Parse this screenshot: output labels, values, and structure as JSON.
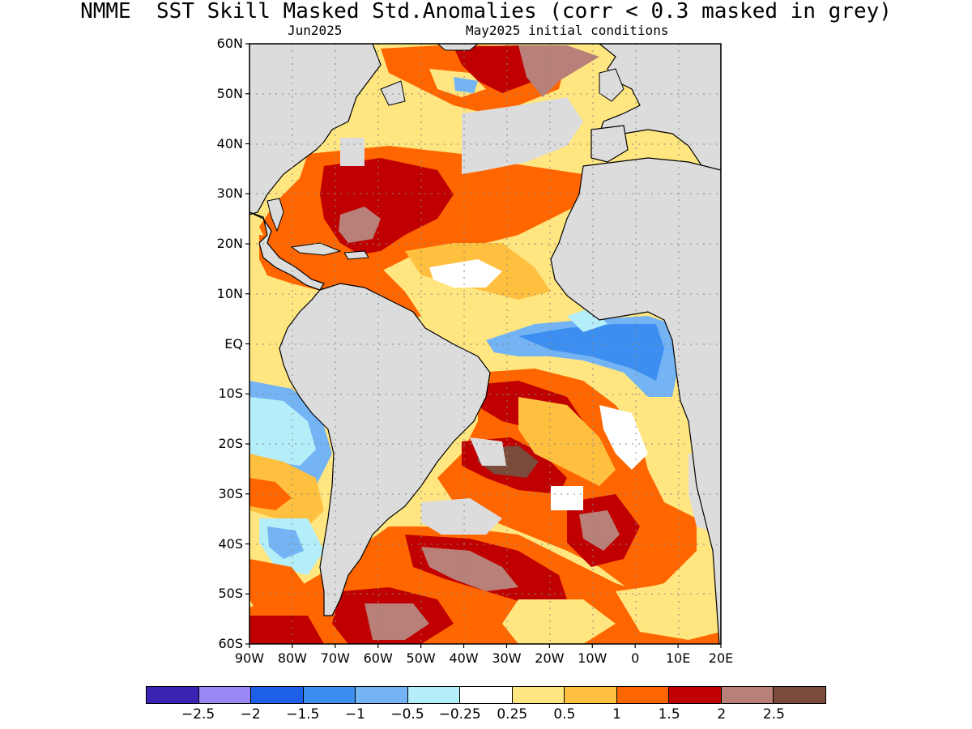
{
  "title": "NMME  SST Skill Masked Std.Anomalies (corr < 0.3 masked in grey)",
  "subtitle_left": "Jun2025",
  "subtitle_right": "May2025 initial conditions",
  "lat_labels": [
    "60N",
    "50N",
    "40N",
    "30N",
    "20N",
    "10N",
    "EQ",
    "10S",
    "20S",
    "30S",
    "40S",
    "50S",
    "60S"
  ],
  "lon_labels": [
    "90W",
    "80W",
    "70W",
    "60W",
    "50W",
    "40W",
    "30W",
    "20W",
    "10W",
    "0",
    "10E",
    "20E"
  ],
  "colorbar": {
    "colors": [
      "#3a22b3",
      "#9b87f5",
      "#1d5fe6",
      "#3c8ef0",
      "#74b4f5",
      "#b4eef8",
      "#ffffff",
      "#ffe680",
      "#ffc040",
      "#ff6600",
      "#c00000",
      "#b88078",
      "#7a4a3a"
    ],
    "labels": [
      "−2.5",
      "−2",
      "−1.5",
      "−1",
      "−0.5",
      "−0.25",
      "0.25",
      "0.5",
      "1",
      "1.5",
      "2",
      "2.5"
    ]
  },
  "map": {
    "mask_color": "#dcdcdc",
    "lat_range": [
      -60,
      60
    ],
    "lon_range": [
      -90,
      20
    ]
  }
}
